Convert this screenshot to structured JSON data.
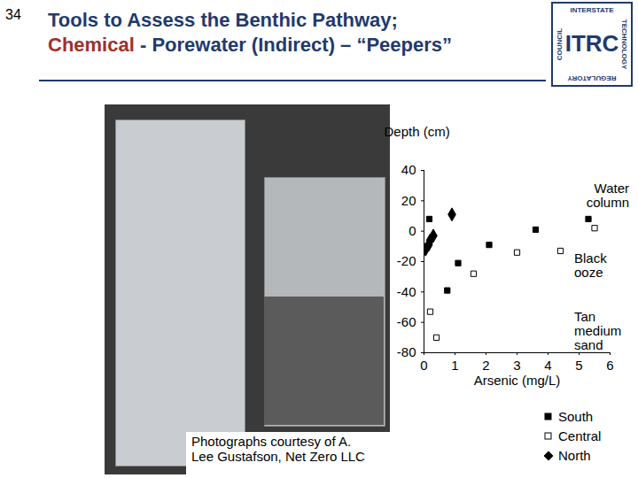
{
  "page": {
    "number": "34",
    "title_line1": "Tools to Assess the Benthic Pathway;",
    "title_line2": [
      {
        "text": "Chemical",
        "color": "#A0302A"
      },
      {
        "text": " - Porewater (Indirect) – “Peepers”",
        "color": "#1F3A6E"
      }
    ],
    "credit": [
      "Photographs courtesy of A.",
      "Lee Gustafson, Net Zero LLC"
    ],
    "logo": {
      "main": "ITRC",
      "top": "INTERSTATE",
      "right": "TECHNOLOGY",
      "bottom": "REGULATORY",
      "left": "COUNCIL"
    }
  },
  "chart_data": {
    "type": "scatter",
    "x_label": "Arsenic (mg/L)",
    "y_label": "Depth (cm)",
    "xlim": [
      0,
      6
    ],
    "ylim": [
      -80,
      40
    ],
    "xticks": [
      0,
      1,
      2,
      3,
      4,
      5,
      6
    ],
    "yticks": [
      40,
      20,
      0,
      -20,
      -40,
      -60,
      -80
    ],
    "grid": false,
    "legend": "bottom",
    "annotations": [
      "Water column",
      "Black ooze",
      "Tan medium sand"
    ],
    "series": [
      {
        "name": "South",
        "color": "#000000",
        "marker": "square",
        "x": [
          0.17,
          3.6,
          5.3,
          2.1,
          1.1,
          0.75
        ],
        "values": [
          8,
          1,
          8,
          -9,
          -21,
          -39
        ]
      },
      {
        "name": "Central",
        "color": "#000000",
        "marker": "open-square",
        "x": [
          5.5,
          3.0,
          4.4,
          1.6,
          0.2,
          0.4
        ],
        "values": [
          2,
          -14,
          -13,
          -28,
          -53,
          -70
        ]
      },
      {
        "name": "North",
        "color": "#000000",
        "marker": "diamond",
        "x": [
          0.9,
          0.3,
          0.2,
          0.15,
          0.05
        ],
        "values": [
          11,
          -3,
          -6,
          -9,
          -12
        ]
      }
    ]
  }
}
